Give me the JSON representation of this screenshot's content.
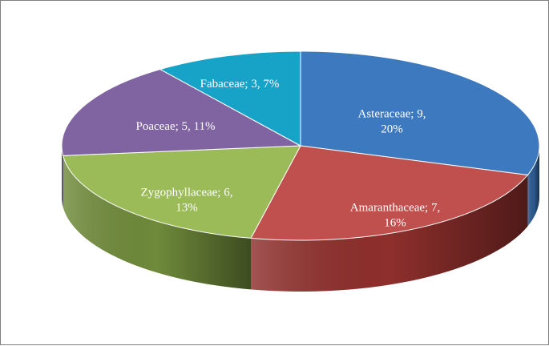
{
  "chart_data": {
    "type": "pie",
    "style": "3d",
    "title": "",
    "grid": false,
    "legend": "none",
    "slices": [
      {
        "label": "Asteraceae",
        "value": 9,
        "percent": 20,
        "color": "#3d79bf",
        "side_color": "#2d5a90",
        "label_lines": [
          "Asteraceae; 9,",
          "20%"
        ]
      },
      {
        "label": "Amaranthaceae",
        "value": 7,
        "percent": 16,
        "color": "#c0504d",
        "side_color": "#8e2f2c",
        "label_lines": [
          "Amaranthaceae; 7,",
          "16%"
        ]
      },
      {
        "label": "Zygophyllaceae",
        "value": 6,
        "percent": 13,
        "color": "#9bbb59",
        "side_color": "#6f8a3a",
        "label_lines": [
          "Zygophyllaceae; 6,",
          "13%"
        ]
      },
      {
        "label": "Poaceae",
        "value": 5,
        "percent": 11,
        "color": "#8064a2",
        "side_color": "#5c4776",
        "label_lines": [
          "Poaceae; 5, 11%"
        ]
      },
      {
        "label": "Fabaceae",
        "value": 3,
        "percent": 7,
        "color": "#17a2c8",
        "side_color": "#0f7693",
        "label_lines": [
          "Fabaceae; 3, 7%"
        ]
      }
    ]
  }
}
